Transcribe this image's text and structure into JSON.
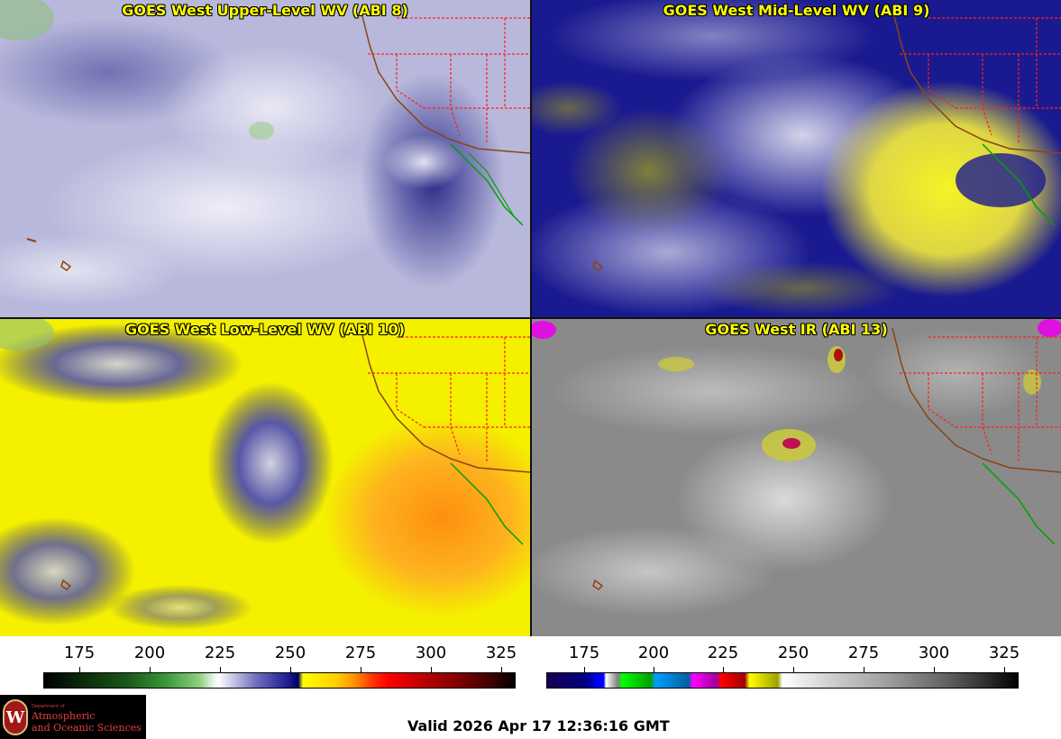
{
  "panels": [
    {
      "title": "GOES West Upper-Level WV (ABI 8)"
    },
    {
      "title": "GOES West Mid-Level WV (ABI 9)"
    },
    {
      "title": "GOES West Low-Level WV (ABI 10)"
    },
    {
      "title": "GOES West IR (ABI 13)"
    }
  ],
  "colorbars": [
    {
      "ticks": [
        "175",
        "200",
        "225",
        "250",
        "275",
        "300",
        "325"
      ]
    },
    {
      "ticks": [
        "175",
        "200",
        "225",
        "250",
        "275",
        "300",
        "325"
      ]
    }
  ],
  "logo": {
    "dept": "Department of",
    "line1": "Atmospheric",
    "line2": "and Oceanic Sciences",
    "seal": "W"
  },
  "valid_time": "Valid 2026 Apr 17 12:36:16 GMT",
  "colors": {
    "title_text": "#ffff00",
    "state_borders": "#ff2020",
    "coastline": "#8b4513",
    "mexico_coast": "#00a000"
  }
}
